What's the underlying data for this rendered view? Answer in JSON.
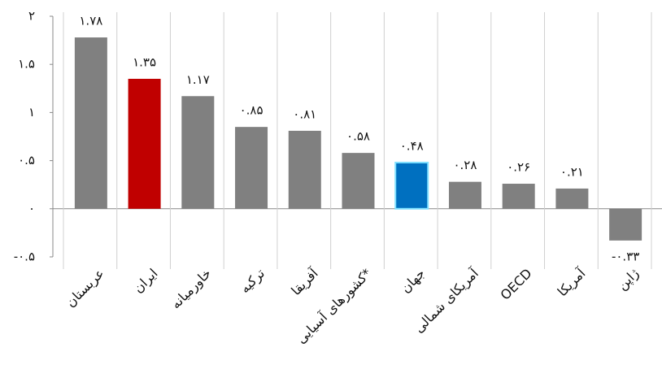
{
  "chart_data": {
    "type": "bar",
    "categories": [
      "عربستان",
      "ایران",
      "خاورمیانه",
      "ترکیه",
      "آفریقا",
      "کشورهای آسیایی*",
      "جهان",
      "آمریکای شمالی",
      "OECD",
      "آمریکا",
      "ژاپن"
    ],
    "values": [
      1.78,
      1.35,
      1.17,
      0.85,
      0.81,
      0.58,
      0.48,
      0.28,
      0.26,
      0.21,
      -0.33
    ],
    "value_labels": [
      "۱.۷۸",
      "۱.۳۵",
      "۱.۱۷",
      "۰.۸۵",
      "۰.۸۱",
      "۰.۵۸",
      "۰.۴۸",
      "۰.۲۸",
      "۰.۲۶",
      "۰.۲۱",
      "-۰.۳۳"
    ],
    "colors": [
      "#808080",
      "#c00000",
      "#808080",
      "#808080",
      "#808080",
      "#808080",
      "#0070c0",
      "#808080",
      "#808080",
      "#808080",
      "#808080"
    ],
    "ylim": [
      -0.5,
      2
    ],
    "yticks": [
      {
        "value": -0.5,
        "label": "-۰.۵"
      },
      {
        "value": 0,
        "label": "۰"
      },
      {
        "value": 0.5,
        "label": "۰.۵"
      },
      {
        "value": 1,
        "label": "۱"
      },
      {
        "value": 1.5,
        "label": "۱.۵"
      },
      {
        "value": 2,
        "label": "۲"
      }
    ]
  }
}
